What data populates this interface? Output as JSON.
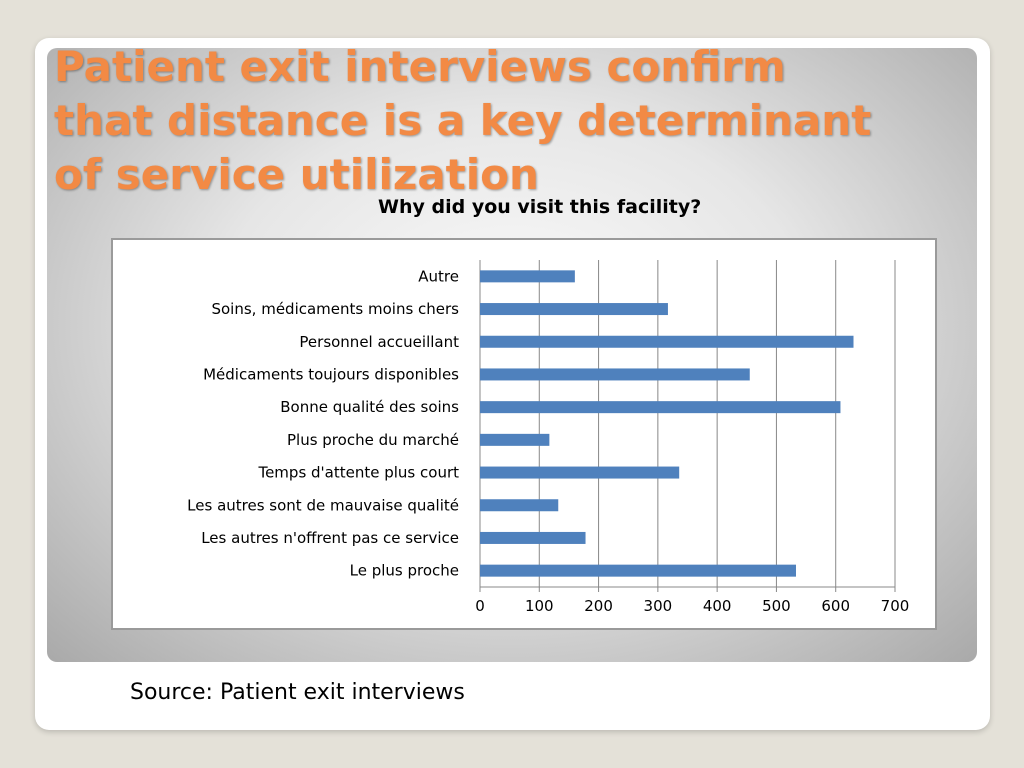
{
  "slide": {
    "title": "Patient exit interviews confirm\nthat distance is a key determinant\nof service utilization",
    "source": "Source: Patient exit interviews"
  },
  "colors": {
    "title": "#f28a45",
    "bar": "#4f81bd",
    "grid": "#888888"
  },
  "chart_data": {
    "type": "bar",
    "orientation": "horizontal",
    "title": "Why did you visit this facility?",
    "xlabel": "",
    "ylabel": "",
    "xlim": [
      0,
      700
    ],
    "xticks": [
      0,
      100,
      200,
      300,
      400,
      500,
      600,
      700
    ],
    "grid": true,
    "legend": "none",
    "categories": [
      "Autre",
      "Soins, médicaments moins chers",
      "Personnel accueillant",
      "Médicaments toujours disponibles",
      "Bonne qualité des soins",
      "Plus proche du marché",
      "Temps d'attente plus court",
      "Les autres sont de mauvaise qualité",
      "Les autres n'offrent pas ce service",
      "Le plus proche"
    ],
    "values": [
      160,
      317,
      630,
      455,
      608,
      117,
      336,
      132,
      178,
      533
    ]
  }
}
